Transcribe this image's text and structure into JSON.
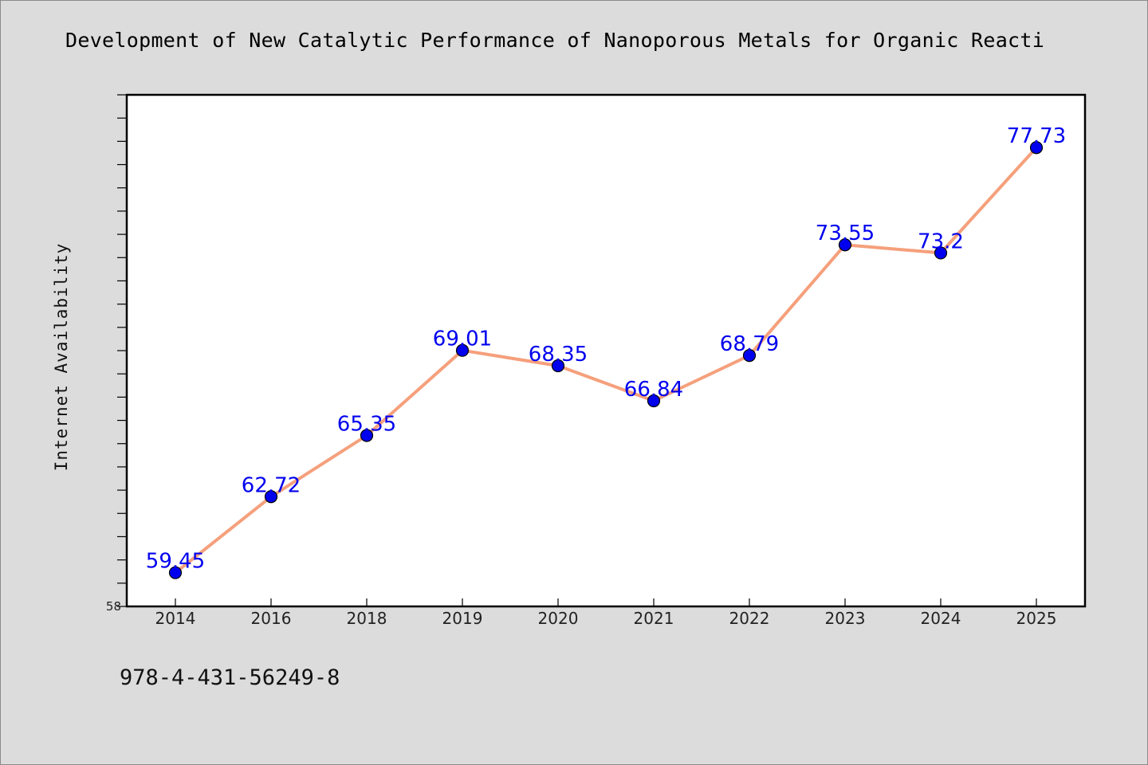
{
  "title": "Development of New Catalytic Performance of Nanoporous Metals for Organic Reacti",
  "footer": "978-4-431-56249-8",
  "colors": {
    "line": "#f5a07c",
    "marker": "#0000ee",
    "label": "#0000ee",
    "background": "#dcdcdc",
    "plot_background": "#ffffff"
  },
  "chart_data": {
    "type": "line",
    "categories": [
      "2014",
      "2016",
      "2018",
      "2019",
      "2020",
      "2021",
      "2022",
      "2023",
      "2024",
      "2025"
    ],
    "series": [
      {
        "values": [
          59.45,
          62.72,
          65.35,
          69.01,
          68.35,
          66.84,
          68.79,
          73.55,
          73.2,
          77.73
        ],
        "labels": [
          "59.45",
          "62.72",
          "65.35",
          "69.01",
          "68.35",
          "66.84",
          "68.79",
          "73.55",
          "73.2",
          "77.73"
        ]
      }
    ],
    "ylabel": "Internet Availability",
    "xlabel": "",
    "ylim": [
      58,
      80
    ],
    "y_min_label": "58",
    "grid": false,
    "legend": "none"
  }
}
